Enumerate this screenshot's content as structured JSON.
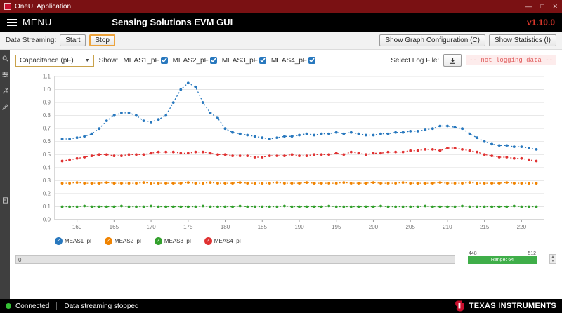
{
  "window": {
    "title": "OneUI Application",
    "controls": {
      "minimize": "—",
      "maximize": "□",
      "close": "✕"
    }
  },
  "header": {
    "menu_label": "MENU",
    "title": "Sensing Solutions EVM GUI",
    "version": "v1.10.0"
  },
  "toolbar": {
    "streaming_label": "Data Streaming:",
    "start_label": "Start",
    "stop_label": "Stop",
    "show_graph_config_label": "Show Graph Configuration (C)",
    "show_statistics_label": "Show Statistics (I)"
  },
  "sidebar": {
    "icons": [
      "search",
      "settings",
      "wrench",
      "pencil",
      "notes"
    ]
  },
  "controls": {
    "measurement_select": "Capacitance (pF)",
    "show_label": "Show:",
    "checkboxes": [
      {
        "label": "MEAS1_pF",
        "checked": true
      },
      {
        "label": "MEAS2_pF",
        "checked": true
      },
      {
        "label": "MEAS3_pF",
        "checked": true
      },
      {
        "label": "MEAS4_pF",
        "checked": true
      }
    ],
    "select_log_file_label": "Select Log File:",
    "logging_status": "-- not logging data --"
  },
  "chart_data": {
    "type": "line",
    "title": "",
    "xlabel": "",
    "ylabel": "",
    "xlim": [
      157,
      223
    ],
    "ylim": [
      0,
      1.1
    ],
    "ytick_step": 0.1,
    "xticks": [
      160,
      165,
      170,
      175,
      180,
      185,
      190,
      195,
      200,
      205,
      210,
      215,
      220
    ],
    "grid": "horizontal",
    "legend_position": "bottom",
    "x_start": 158,
    "x_step": 1,
    "series": [
      {
        "name": "MEAS1_pF",
        "color": "#2878be",
        "values": [
          0.62,
          0.62,
          0.63,
          0.64,
          0.66,
          0.7,
          0.76,
          0.8,
          0.82,
          0.82,
          0.8,
          0.76,
          0.75,
          0.77,
          0.8,
          0.9,
          1.0,
          1.05,
          1.02,
          0.9,
          0.82,
          0.78,
          0.7,
          0.67,
          0.66,
          0.65,
          0.64,
          0.63,
          0.62,
          0.63,
          0.64,
          0.64,
          0.65,
          0.66,
          0.65,
          0.66,
          0.66,
          0.67,
          0.66,
          0.67,
          0.66,
          0.65,
          0.65,
          0.66,
          0.66,
          0.67,
          0.67,
          0.68,
          0.68,
          0.69,
          0.7,
          0.72,
          0.72,
          0.71,
          0.7,
          0.66,
          0.63,
          0.6,
          0.58,
          0.57,
          0.57,
          0.56,
          0.56,
          0.55,
          0.54
        ]
      },
      {
        "name": "MEAS2_pF",
        "color": "#f08300",
        "values": [
          0.28,
          0.28,
          0.285,
          0.28,
          0.28,
          0.28,
          0.285,
          0.28,
          0.28,
          0.28,
          0.28,
          0.285,
          0.28,
          0.28,
          0.28,
          0.28,
          0.28,
          0.285,
          0.28,
          0.28,
          0.285,
          0.28,
          0.28,
          0.28,
          0.285,
          0.28,
          0.28,
          0.28,
          0.28,
          0.285,
          0.28,
          0.28,
          0.28,
          0.285,
          0.28,
          0.28,
          0.28,
          0.28,
          0.285,
          0.28,
          0.28,
          0.28,
          0.285,
          0.28,
          0.28,
          0.28,
          0.285,
          0.28,
          0.28,
          0.28,
          0.28,
          0.285,
          0.28,
          0.28,
          0.28,
          0.285,
          0.28,
          0.28,
          0.28,
          0.28,
          0.285,
          0.28,
          0.28,
          0.28,
          0.28
        ]
      },
      {
        "name": "MEAS3_pF",
        "color": "#33a02c",
        "values": [
          0.1,
          0.1,
          0.1,
          0.105,
          0.1,
          0.1,
          0.1,
          0.1,
          0.105,
          0.1,
          0.1,
          0.1,
          0.105,
          0.1,
          0.1,
          0.1,
          0.1,
          0.1,
          0.1,
          0.105,
          0.1,
          0.1,
          0.1,
          0.1,
          0.105,
          0.1,
          0.1,
          0.1,
          0.1,
          0.1,
          0.105,
          0.1,
          0.1,
          0.1,
          0.1,
          0.1,
          0.105,
          0.1,
          0.1,
          0.1,
          0.1,
          0.1,
          0.1,
          0.105,
          0.1,
          0.1,
          0.1,
          0.1,
          0.1,
          0.105,
          0.1,
          0.1,
          0.1,
          0.1,
          0.105,
          0.1,
          0.1,
          0.1,
          0.1,
          0.1,
          0.1,
          0.105,
          0.1,
          0.1,
          0.1
        ]
      },
      {
        "name": "MEAS4_pF",
        "color": "#e03131",
        "values": [
          0.45,
          0.46,
          0.47,
          0.48,
          0.49,
          0.5,
          0.5,
          0.49,
          0.49,
          0.5,
          0.5,
          0.5,
          0.51,
          0.52,
          0.52,
          0.52,
          0.51,
          0.51,
          0.52,
          0.52,
          0.51,
          0.5,
          0.5,
          0.49,
          0.49,
          0.49,
          0.48,
          0.48,
          0.49,
          0.49,
          0.49,
          0.5,
          0.49,
          0.49,
          0.5,
          0.5,
          0.5,
          0.51,
          0.5,
          0.52,
          0.51,
          0.5,
          0.51,
          0.51,
          0.52,
          0.52,
          0.52,
          0.53,
          0.53,
          0.54,
          0.54,
          0.53,
          0.55,
          0.55,
          0.54,
          0.53,
          0.52,
          0.5,
          0.49,
          0.48,
          0.48,
          0.47,
          0.47,
          0.46,
          0.45
        ]
      }
    ]
  },
  "bottom": {
    "scroll_value": "0",
    "range_min": "448",
    "range_max": "512",
    "range_label": "Range: 64"
  },
  "statusbar": {
    "connected_label": "Connected",
    "streaming_status": "Data streaming stopped",
    "brand": "TEXAS INSTRUMENTS"
  },
  "colors": {
    "titlebar_maroon": "#7a1113",
    "version_red": "#d9372b",
    "range_green": "#3fae49",
    "status_green": "#35c135",
    "logging_status_red": "#e05c5c"
  }
}
